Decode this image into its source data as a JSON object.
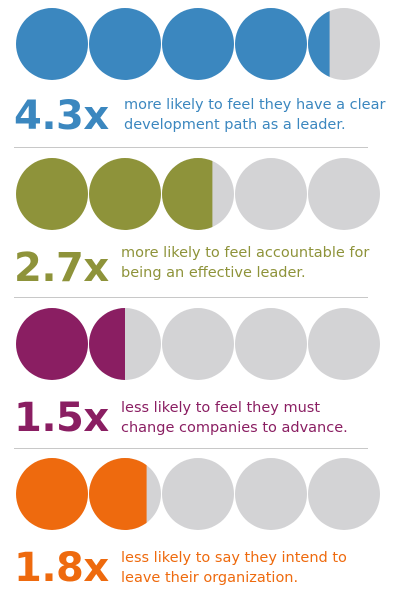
{
  "chart_data": [
    {
      "type": "pictograph",
      "total": 5,
      "value": 4.3,
      "label": "4.3x",
      "line1": "more likely to feel they have a clear",
      "line2": "development path as a leader.",
      "color": "#3b87bf"
    },
    {
      "type": "pictograph",
      "total": 5,
      "value": 2.7,
      "label": "2.7x",
      "line1": "more likely to feel accountable for",
      "line2": "being an effective leader.",
      "color": "#8e933a"
    },
    {
      "type": "pictograph",
      "total": 5,
      "value": 1.5,
      "label": "1.5x",
      "line1": "less likely to feel they must",
      "line2": "change companies to advance.",
      "color": "#8a1e62"
    },
    {
      "type": "pictograph",
      "total": 5,
      "value": 1.8,
      "label": "1.8x",
      "line1": "less likely to say they intend to",
      "line2": "leave their organization.",
      "color": "#ee6a0e"
    }
  ],
  "colors": {
    "empty": "#d3d3d5",
    "divider": "#c8c8c8"
  }
}
